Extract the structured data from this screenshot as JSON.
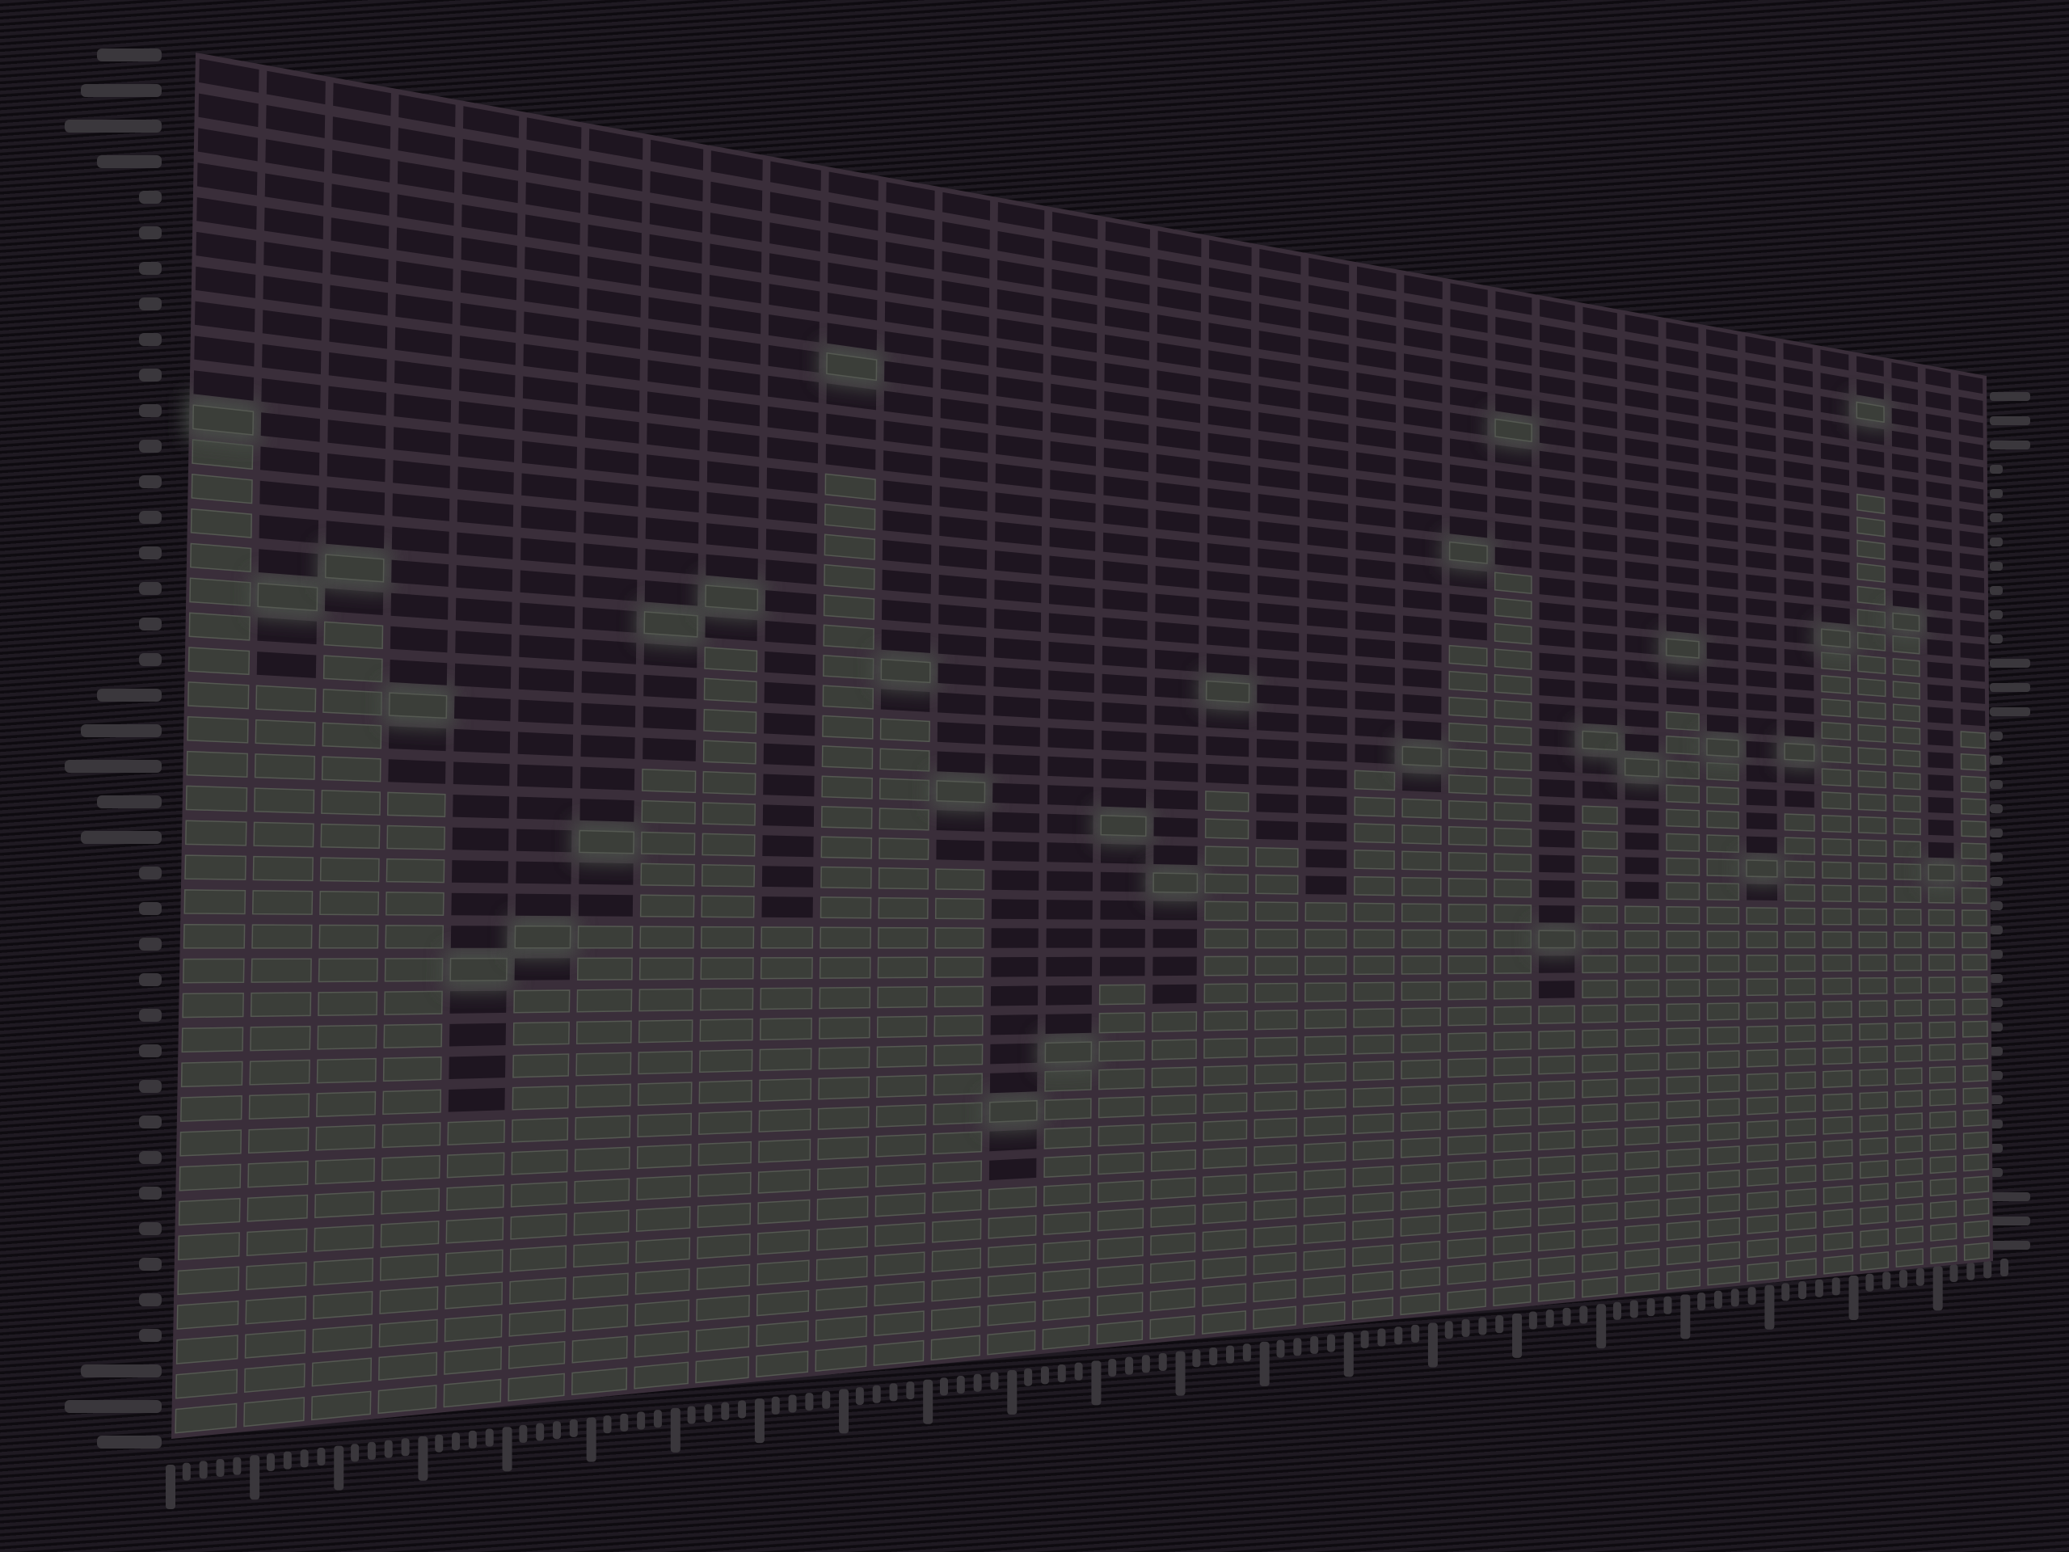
{
  "equalizer": {
    "columns": 36,
    "rows": 40,
    "levels": [
      0.72,
      0.55,
      0.6,
      0.48,
      0.23,
      0.33,
      0.38,
      0.51,
      0.61,
      0.38,
      0.75,
      0.55,
      0.43,
      0.14,
      0.24,
      0.33,
      0.29,
      0.51,
      0.46,
      0.39,
      0.52,
      0.51,
      0.64,
      0.73,
      0.3,
      0.49,
      0.39,
      0.61,
      0.54,
      0.4,
      0.51,
      0.67,
      0.85,
      0.69,
      0.43,
      0.61
    ],
    "peaks": [
      0.76,
      0.62,
      0.64,
      0.54,
      0.35,
      0.37,
      0.45,
      0.62,
      0.65,
      0.38,
      0.84,
      0.59,
      0.5,
      0.22,
      0.27,
      0.48,
      0.42,
      0.6,
      0.46,
      0.39,
      0.52,
      0.55,
      0.75,
      0.87,
      0.38,
      0.58,
      0.55,
      0.67,
      0.58,
      0.46,
      0.58,
      0.7,
      0.94,
      0.72,
      0.46,
      0.61
    ],
    "colors": {
      "panel": "#1e1520",
      "grid": "#3a2e3a",
      "lit_cell": "#3b3e39",
      "lit_border": "#555952",
      "peak_glow": "#4a4f48",
      "scale": "#3a373c"
    }
  }
}
